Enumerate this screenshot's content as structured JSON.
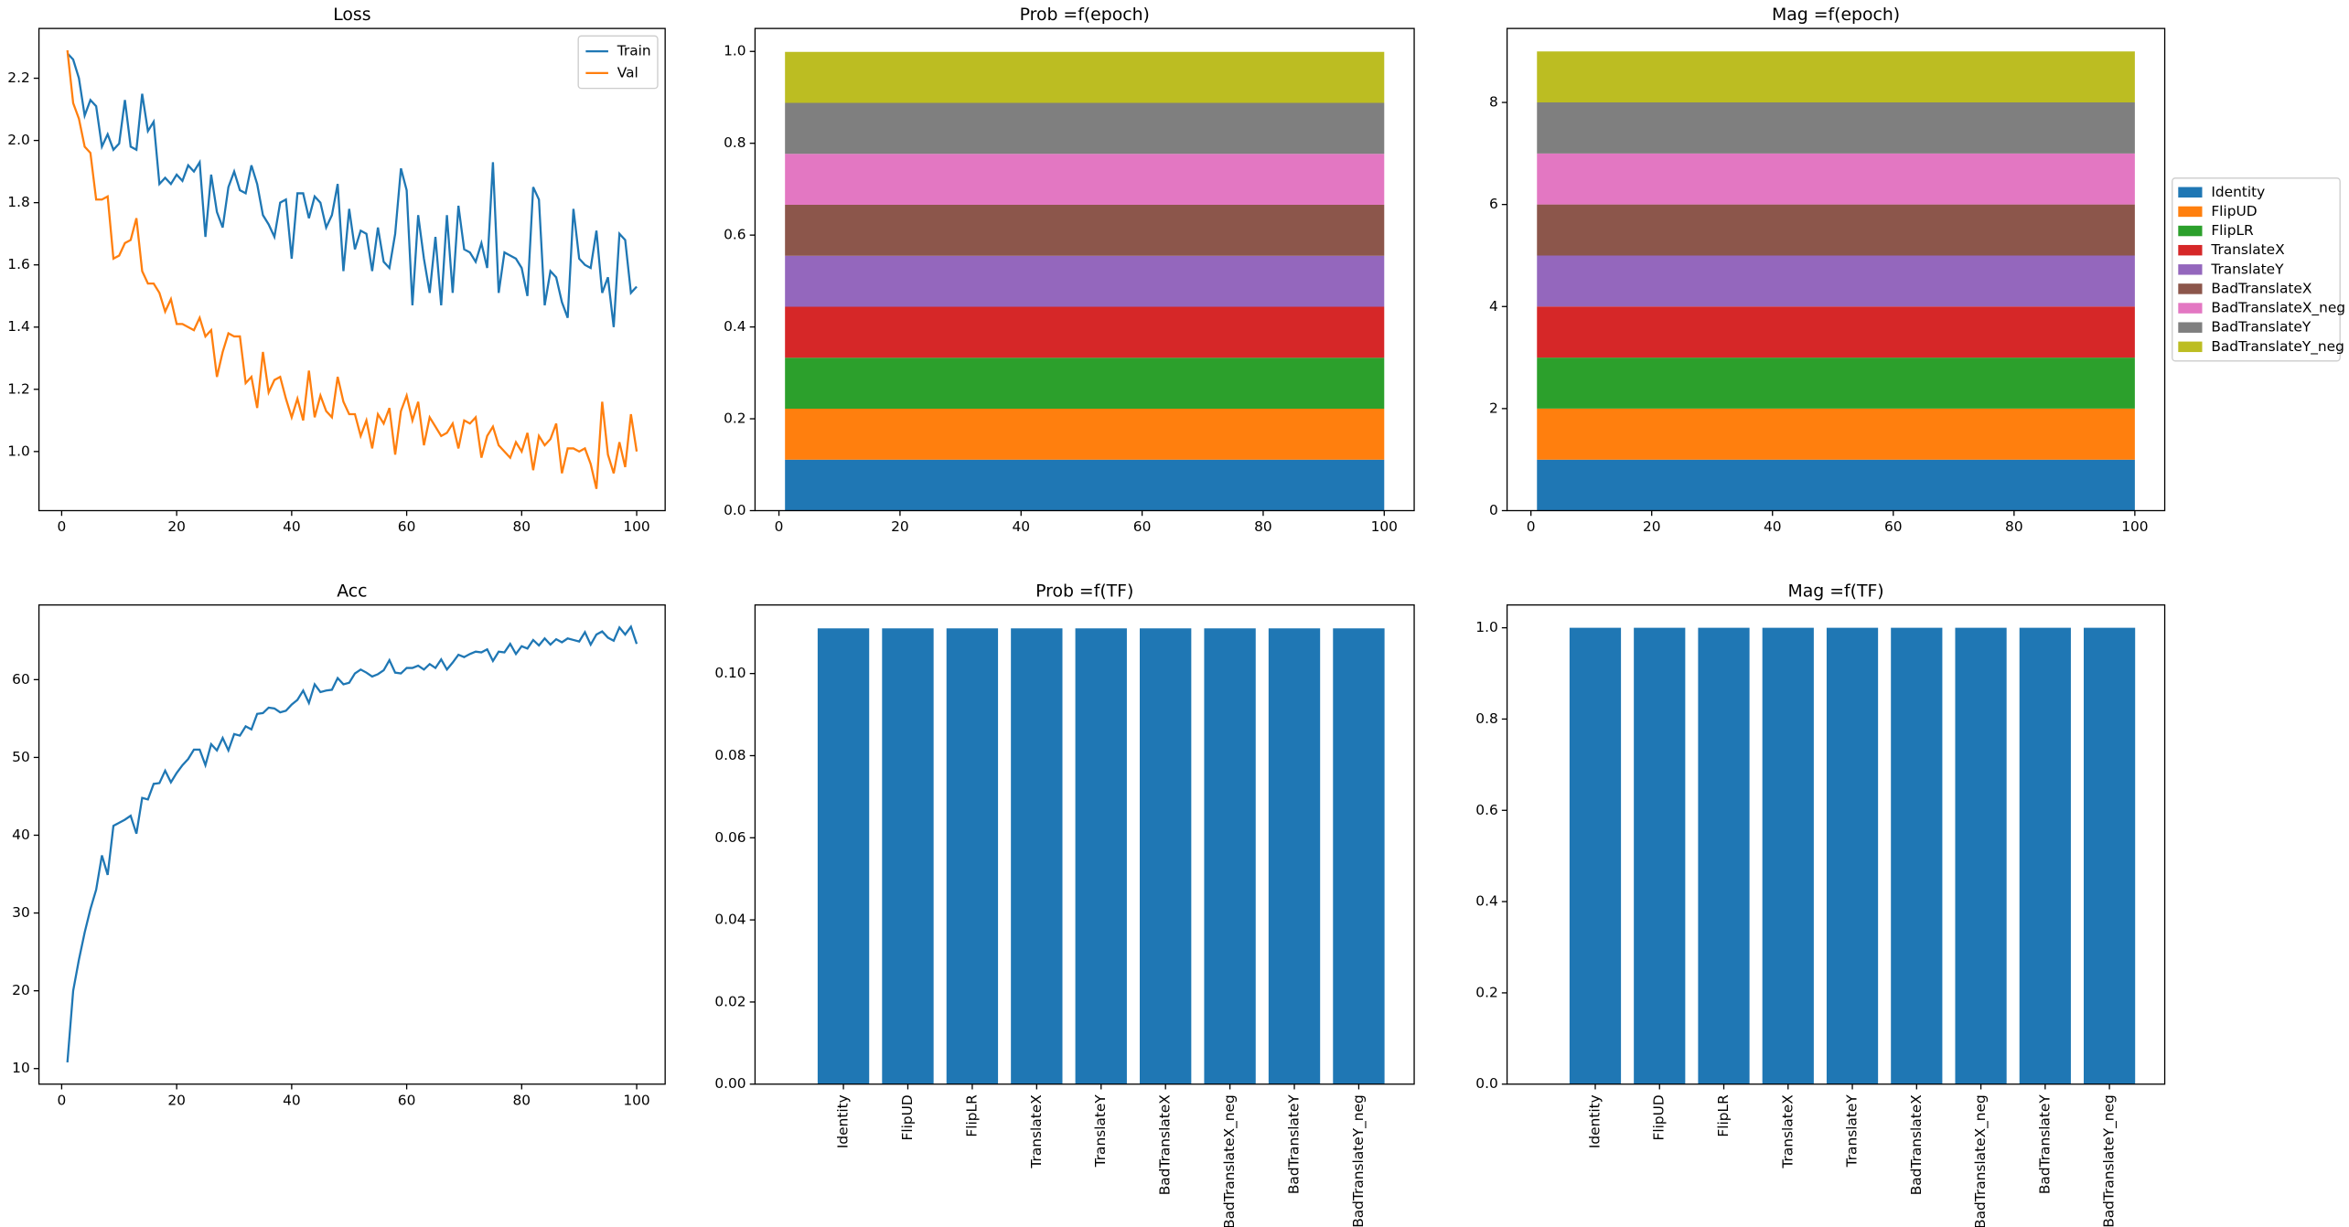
{
  "chart_data": [
    {
      "type": "line",
      "title": "Loss",
      "x": [
        1,
        2,
        3,
        4,
        5,
        6,
        7,
        8,
        9,
        10,
        11,
        12,
        13,
        14,
        15,
        16,
        17,
        18,
        19,
        20,
        21,
        22,
        23,
        24,
        25,
        26,
        27,
        28,
        29,
        30,
        31,
        32,
        33,
        34,
        35,
        36,
        37,
        38,
        39,
        40,
        41,
        42,
        43,
        44,
        45,
        46,
        47,
        48,
        49,
        50,
        51,
        52,
        53,
        54,
        55,
        56,
        57,
        58,
        59,
        60,
        61,
        62,
        63,
        64,
        65,
        66,
        67,
        68,
        69,
        70,
        71,
        72,
        73,
        74,
        75,
        76,
        77,
        78,
        79,
        80,
        81,
        82,
        83,
        84,
        85,
        86,
        87,
        88,
        89,
        90,
        91,
        92,
        93,
        94,
        95,
        96,
        97,
        98,
        99,
        100
      ],
      "series": [
        {
          "name": "Train",
          "color": "#1f77b4",
          "values": [
            2.28,
            2.26,
            2.2,
            2.08,
            2.13,
            2.11,
            1.98,
            2.02,
            1.97,
            1.99,
            2.13,
            1.98,
            1.97,
            2.15,
            2.03,
            2.06,
            1.86,
            1.88,
            1.86,
            1.89,
            1.87,
            1.92,
            1.9,
            1.93,
            1.69,
            1.89,
            1.77,
            1.72,
            1.85,
            1.9,
            1.84,
            1.83,
            1.92,
            1.86,
            1.76,
            1.73,
            1.69,
            1.8,
            1.81,
            1.62,
            1.83,
            1.83,
            1.75,
            1.82,
            1.8,
            1.72,
            1.76,
            1.86,
            1.58,
            1.78,
            1.65,
            1.71,
            1.7,
            1.58,
            1.72,
            1.61,
            1.59,
            1.7,
            1.91,
            1.84,
            1.47,
            1.76,
            1.62,
            1.51,
            1.69,
            1.47,
            1.76,
            1.51,
            1.79,
            1.65,
            1.64,
            1.61,
            1.67,
            1.59,
            1.93,
            1.51,
            1.64,
            1.63,
            1.62,
            1.59,
            1.5,
            1.85,
            1.81,
            1.47,
            1.58,
            1.56,
            1.48,
            1.43,
            1.78,
            1.62,
            1.6,
            1.59,
            1.71,
            1.51,
            1.56,
            1.4,
            1.7,
            1.68,
            1.51,
            1.53
          ]
        },
        {
          "name": "Val",
          "color": "#ff7f0e",
          "values": [
            2.29,
            2.12,
            2.07,
            1.98,
            1.96,
            1.81,
            1.81,
            1.82,
            1.62,
            1.63,
            1.67,
            1.68,
            1.75,
            1.58,
            1.54,
            1.54,
            1.51,
            1.45,
            1.49,
            1.41,
            1.41,
            1.4,
            1.39,
            1.43,
            1.37,
            1.39,
            1.24,
            1.32,
            1.38,
            1.37,
            1.37,
            1.22,
            1.24,
            1.14,
            1.32,
            1.19,
            1.23,
            1.24,
            1.17,
            1.11,
            1.17,
            1.1,
            1.26,
            1.11,
            1.18,
            1.13,
            1.11,
            1.24,
            1.16,
            1.12,
            1.12,
            1.05,
            1.1,
            1.01,
            1.12,
            1.09,
            1.14,
            0.99,
            1.13,
            1.18,
            1.1,
            1.16,
            1.02,
            1.11,
            1.08,
            1.05,
            1.06,
            1.09,
            1.01,
            1.1,
            1.09,
            1.11,
            0.98,
            1.05,
            1.08,
            1.02,
            1.0,
            0.98,
            1.03,
            1.0,
            1.06,
            0.94,
            1.05,
            1.02,
            1.04,
            1.09,
            0.93,
            1.01,
            1.01,
            1.0,
            1.01,
            0.96,
            0.88,
            1.16,
            0.99,
            0.93,
            1.03,
            0.95,
            1.12,
            1.0
          ]
        }
      ],
      "xlim": [
        -3.95,
        104.95
      ],
      "xticks": [
        0,
        20,
        40,
        60,
        80,
        100
      ],
      "ylim": [
        0.81,
        2.36
      ],
      "yticks": [
        {
          "value": 1.0,
          "label": "1.0"
        },
        1.2,
        1.4,
        1.6,
        1.8,
        {
          "value": 2.0,
          "label": "2.0"
        },
        2.2
      ],
      "legend": "upper right"
    },
    {
      "type": "area",
      "title": "Prob =f(epoch)",
      "stacked": true,
      "x": [
        1,
        100
      ],
      "series": [
        {
          "color": "#1f77b4",
          "values": [
            0.111,
            0.111
          ]
        },
        {
          "color": "#ff7f0e",
          "values": [
            0.111,
            0.111
          ]
        },
        {
          "color": "#2ca02c",
          "values": [
            0.111,
            0.111
          ]
        },
        {
          "color": "#d62728",
          "values": [
            0.111,
            0.111
          ]
        },
        {
          "color": "#9467bd",
          "values": [
            0.111,
            0.111
          ]
        },
        {
          "color": "#8c564b",
          "values": [
            0.111,
            0.111
          ]
        },
        {
          "color": "#e377c2",
          "values": [
            0.111,
            0.111
          ]
        },
        {
          "color": "#7f7f7f",
          "values": [
            0.111,
            0.111
          ]
        },
        {
          "color": "#bcbd22",
          "values": [
            0.111,
            0.111
          ]
        }
      ],
      "xlim": [
        -3.95,
        104.95
      ],
      "xticks": [
        0,
        20,
        40,
        60,
        80,
        100
      ],
      "ylim": [
        0,
        1.05
      ],
      "yticks": [
        {
          "value": 0,
          "label": "0.0"
        },
        0.2,
        0.4,
        0.6,
        0.8,
        {
          "value": 1,
          "label": "1.0"
        }
      ]
    },
    {
      "type": "area",
      "title": "Mag =f(epoch)",
      "stacked": true,
      "x": [
        1,
        100
      ],
      "series": [
        {
          "name": "Identity",
          "color": "#1f77b4",
          "values": [
            1,
            1
          ]
        },
        {
          "name": "FlipUD",
          "color": "#ff7f0e",
          "values": [
            1,
            1
          ]
        },
        {
          "name": "FlipLR",
          "color": "#2ca02c",
          "values": [
            1,
            1
          ]
        },
        {
          "name": "TranslateX",
          "color": "#d62728",
          "values": [
            1,
            1
          ]
        },
        {
          "name": "TranslateY",
          "color": "#9467bd",
          "values": [
            1,
            1
          ]
        },
        {
          "name": "BadTranslateX",
          "color": "#8c564b",
          "values": [
            1,
            1
          ]
        },
        {
          "name": "BadTranslateX_neg",
          "color": "#e377c2",
          "values": [
            1,
            1
          ]
        },
        {
          "name": "BadTranslateY",
          "color": "#7f7f7f",
          "values": [
            1,
            1
          ]
        },
        {
          "name": "BadTranslateY_neg",
          "color": "#bcbd22",
          "values": [
            1,
            1
          ]
        }
      ],
      "xlim": [
        -3.95,
        104.95
      ],
      "xticks": [
        0,
        20,
        40,
        60,
        80,
        100
      ],
      "ylim": [
        0,
        9.45
      ],
      "yticks": [
        0,
        2,
        4,
        6,
        8
      ],
      "legend": "outside right"
    },
    {
      "type": "line",
      "title": "Acc",
      "x": [
        1,
        2,
        3,
        4,
        5,
        6,
        7,
        8,
        9,
        10,
        11,
        12,
        13,
        14,
        15,
        16,
        17,
        18,
        19,
        20,
        21,
        22,
        23,
        24,
        25,
        26,
        27,
        28,
        29,
        30,
        31,
        32,
        33,
        34,
        35,
        36,
        37,
        38,
        39,
        40,
        41,
        42,
        43,
        44,
        45,
        46,
        47,
        48,
        49,
        50,
        51,
        52,
        53,
        54,
        55,
        56,
        57,
        58,
        59,
        60,
        61,
        62,
        63,
        64,
        65,
        66,
        67,
        68,
        69,
        70,
        71,
        72,
        73,
        74,
        75,
        76,
        77,
        78,
        79,
        80,
        81,
        82,
        83,
        84,
        85,
        86,
        87,
        88,
        89,
        90,
        91,
        92,
        93,
        94,
        95,
        96,
        97,
        98,
        99,
        100
      ],
      "series": [
        {
          "color": "#1f77b4",
          "values": [
            10.8,
            20,
            24,
            27.5,
            30.5,
            33,
            37.4,
            34.9,
            41.2,
            41.6,
            42,
            42.5,
            40.2,
            44.8,
            44.6,
            46.6,
            46.7,
            48.3,
            46.8,
            48,
            49,
            49.8,
            51,
            51,
            49,
            51.7,
            50.9,
            52.5,
            50.9,
            53,
            52.8,
            54,
            53.6,
            55.6,
            55.7,
            56.4,
            56.3,
            55.8,
            56,
            56.8,
            57.4,
            58.6,
            57,
            59.4,
            58.4,
            58.6,
            58.7,
            60.2,
            59.4,
            59.6,
            60.8,
            61.3,
            60.9,
            60.4,
            60.7,
            61.2,
            62.5,
            60.9,
            60.8,
            61.5,
            61.5,
            61.8,
            61.3,
            62,
            61.5,
            62.6,
            61.3,
            62.2,
            63.2,
            62.9,
            63.3,
            63.6,
            63.5,
            63.9,
            62.4,
            63.6,
            63.5,
            64.6,
            63.3,
            64.3,
            64,
            65.1,
            64.4,
            65.3,
            64.5,
            65.2,
            64.8,
            65.3,
            65.1,
            64.9,
            66.1,
            64.5,
            65.8,
            66.2,
            65.4,
            65,
            66.7,
            65.8,
            66.8,
            64.6
          ]
        }
      ],
      "xlim": [
        -3.95,
        104.95
      ],
      "xticks": [
        0,
        20,
        40,
        60,
        80,
        100
      ],
      "ylim": [
        8,
        69.6
      ],
      "yticks": [
        10,
        20,
        30,
        40,
        50,
        60
      ]
    },
    {
      "type": "bar",
      "title": "Prob =f(TF)",
      "categories": [
        "Identity",
        "FlipUD",
        "FlipLR",
        "TranslateX",
        "TranslateY",
        "BadTranslateX",
        "BadTranslateX_neg",
        "BadTranslateY",
        "BadTranslateY_neg"
      ],
      "values": [
        0.111,
        0.111,
        0.111,
        0.111,
        0.111,
        0.111,
        0.111,
        0.111,
        0.111
      ],
      "color": "#1f77b4",
      "ylim": [
        0,
        0.1167
      ],
      "yticks": [
        {
          "value": 0,
          "label": "0.00"
        },
        {
          "value": 0.02,
          "label": "0.02"
        },
        {
          "value": 0.04,
          "label": "0.04"
        },
        {
          "value": 0.06,
          "label": "0.06"
        },
        {
          "value": 0.08,
          "label": "0.08"
        },
        {
          "value": 0.1,
          "label": "0.10"
        }
      ]
    },
    {
      "type": "bar",
      "title": "Mag =f(TF)",
      "categories": [
        "Identity",
        "FlipUD",
        "FlipLR",
        "TranslateX",
        "TranslateY",
        "BadTranslateX",
        "BadTranslateX_neg",
        "BadTranslateY",
        "BadTranslateY_neg"
      ],
      "values": [
        1,
        1,
        1,
        1,
        1,
        1,
        1,
        1,
        1
      ],
      "color": "#1f77b4",
      "ylim": [
        0,
        1.05
      ],
      "yticks": [
        {
          "value": 0,
          "label": "0.0"
        },
        0.2,
        0.4,
        0.6,
        0.8,
        {
          "value": 1,
          "label": "1.0"
        }
      ]
    }
  ]
}
